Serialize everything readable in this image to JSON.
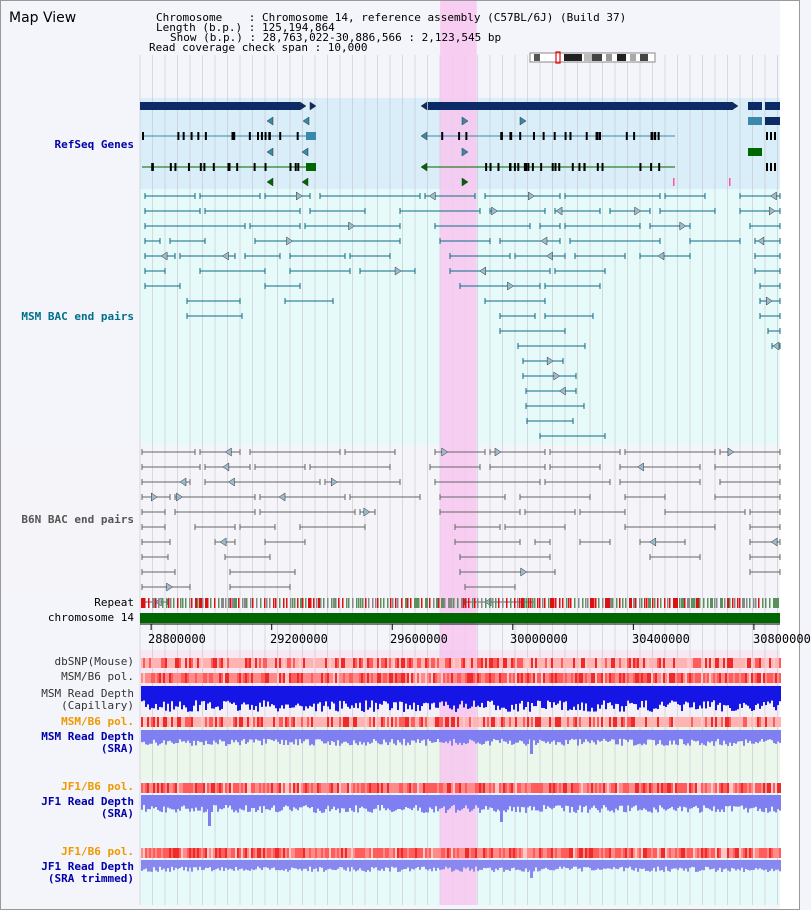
{
  "title": "Map View",
  "info": {
    "chromosome": "Chromosome    : Chromosome 14, reference assembly (C57BL/6J) (Build 37)",
    "length": "Length (b.p.) : 125,194,864",
    "show": "Show (b.p.) : 28,763,022-30,886,566 : 2,123,545 bp",
    "coverage": "Read coverage check span : 10,000"
  },
  "tracks": {
    "refseq": "RefSeq Genes",
    "msm_bac": "MSM BAC end pairs",
    "b6n_bac": "B6N BAC end pairs",
    "repeat": "Repeat",
    "chromosome": "chromosome 14",
    "dbsnp": "dbSNP(Mouse)",
    "msm_b6_pol_1": "MSM/B6 pol.",
    "msm_depth_cap_1": "MSM Read Depth",
    "msm_depth_cap_2": "(Capillary)",
    "msm_b6_pol_2": "MSM/B6 pol.",
    "msm_depth_sra_1": "MSM Read Depth",
    "msm_depth_sra_2": "(SRA)",
    "jf1_b6_pol_1": "JF1/B6 pol.",
    "jf1_depth_sra_1": "JF1 Read Depth",
    "jf1_depth_sra_2": "(SRA)",
    "jf1_b6_pol_2": "JF1/B6 pol.",
    "jf1_depth_trim_1": "JF1 Read Depth",
    "jf1_depth_trim_2": "(SRA trimmed)"
  },
  "axis": {
    "ticks": [
      "28800000",
      "29200000",
      "29600000",
      "30000000",
      "30400000",
      "30800000"
    ],
    "values": [
      28800000,
      29200000,
      29600000,
      30000000,
      30400000,
      30800000
    ],
    "range": [
      28763022,
      30886566
    ]
  },
  "highlight": {
    "range": [
      29759000,
      29880000
    ],
    "color": "#f7c6f0"
  },
  "colors": {
    "refseq_label": "#0000aa",
    "msm_label": "#006f8a",
    "b6n_label": "#555555",
    "jf1_label": "#ee9900",
    "gene_dark": "#0b2a66",
    "gene_blue": "#3a88aa",
    "gene_green": "#006600",
    "chrom_green": "#006600",
    "depth_blue": "#1515e6",
    "depth_light": "#7f7ff2"
  }
}
